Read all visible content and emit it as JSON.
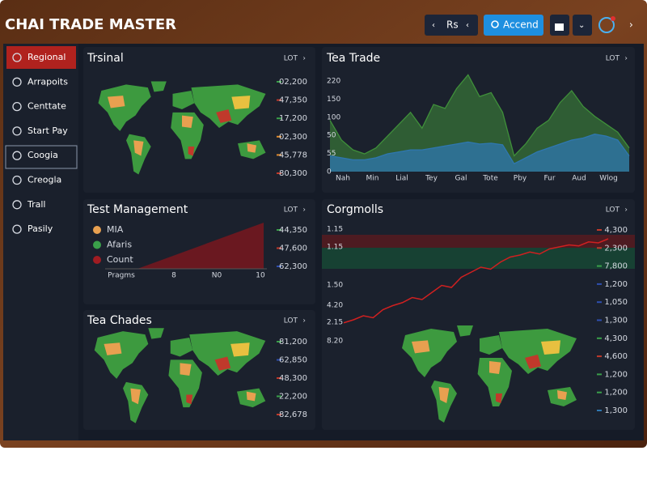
{
  "header": {
    "title": "CHAI TRADE MASTER",
    "currency": "Rs",
    "account": "Accend"
  },
  "sidebar": [
    "Regional",
    "Arrapoits",
    "Centtate",
    "Start Pay",
    "Coogia",
    "Creogla",
    "Trall",
    "Pasily"
  ],
  "panels": {
    "trsinal": {
      "title": "Trsinal",
      "badge": "LOT",
      "values": [
        {
          "label": "02,200",
          "color": "#3aa04a"
        },
        {
          "label": "47,350",
          "color": "#c0392b"
        },
        {
          "label": "17,200",
          "color": "#3aa04a"
        },
        {
          "label": "02,300",
          "color": "#e08a2c"
        },
        {
          "label": "45,778",
          "color": "#e08a2c"
        },
        {
          "label": "80,300",
          "color": "#c0392b"
        }
      ]
    },
    "tea_trade": {
      "title": "Tea Trade",
      "badge": "LOT",
      "y_labels": [
        "220",
        "150",
        "100",
        "50",
        "55",
        "0"
      ],
      "x_labels": [
        "Nah",
        "Min",
        "Lial",
        "Tey",
        "Gal",
        "Tote",
        "Pby",
        "Fur",
        "Aud",
        "Wlog"
      ],
      "ylim": [
        0,
        250
      ],
      "series": [
        {
          "color": "#3f8f3a",
          "values": [
            130,
            80,
            55,
            45,
            60,
            90,
            120,
            150,
            110,
            170,
            160,
            210,
            245,
            190,
            200,
            150,
            40,
            70,
            110,
            130,
            175,
            205,
            165,
            140,
            120,
            100,
            60
          ]
        },
        {
          "color": "#2f77b0",
          "values": [
            40,
            35,
            30,
            30,
            35,
            45,
            50,
            55,
            55,
            60,
            65,
            70,
            75,
            70,
            72,
            68,
            20,
            35,
            50,
            60,
            70,
            80,
            85,
            95,
            90,
            80,
            40
          ]
        }
      ]
    },
    "test_management": {
      "title": "Test Management",
      "badge": "LOT",
      "legend": [
        {
          "label": "MIA",
          "color": "#e8a050"
        },
        {
          "label": "Afaris",
          "color": "#3aa04a"
        },
        {
          "label": "Count",
          "color": "#a01c22"
        }
      ],
      "x_labels": [
        "Pragms",
        "8",
        "N0",
        "10"
      ],
      "values": [
        {
          "label": "44,350",
          "color": "#3aa04a"
        },
        {
          "label": "47,600",
          "color": "#c0392b"
        },
        {
          "label": "62,300",
          "color": "#2f4fb0"
        }
      ]
    },
    "corgmolls": {
      "title": "Corgmolls",
      "badge": "LOT",
      "y_labels": [
        "1.15",
        "1.15",
        "1.50",
        "4.20",
        "2.15",
        "8.20"
      ],
      "ylim": [
        0,
        100
      ],
      "line": {
        "color": "#d02020",
        "values": [
          5,
          8,
          12,
          10,
          18,
          22,
          25,
          30,
          28,
          35,
          42,
          40,
          50,
          55,
          60,
          58,
          65,
          70,
          72,
          75,
          73,
          78,
          80,
          82,
          81,
          85,
          84,
          88
        ]
      },
      "values": [
        {
          "label": "4,300",
          "color": "#c0392b"
        },
        {
          "label": "2,300",
          "color": "#c0392b"
        },
        {
          "label": "7,800",
          "color": "#3aa04a"
        },
        {
          "label": "1,200",
          "color": "#2f4fb0"
        },
        {
          "label": "1,050",
          "color": "#2f4fb0"
        },
        {
          "label": "1,300",
          "color": "#2f4fb0"
        },
        {
          "label": "4,300",
          "color": "#3aa04a"
        },
        {
          "label": "4,600",
          "color": "#c0392b"
        },
        {
          "label": "1,200",
          "color": "#3aa04a"
        },
        {
          "label": "1,200",
          "color": "#3aa04a"
        },
        {
          "label": "1,300",
          "color": "#2f77b0"
        }
      ]
    },
    "tea_chades": {
      "title": "Tea Chades",
      "badge": "LOT",
      "values": [
        {
          "label": "81,200",
          "color": "#3aa04a"
        },
        {
          "label": "62,850",
          "color": "#2f4fb0"
        },
        {
          "label": "48,300",
          "color": "#c0392b"
        },
        {
          "label": "22,200",
          "color": "#3aa04a"
        },
        {
          "label": "82,678",
          "color": "#c0392b"
        }
      ]
    }
  }
}
